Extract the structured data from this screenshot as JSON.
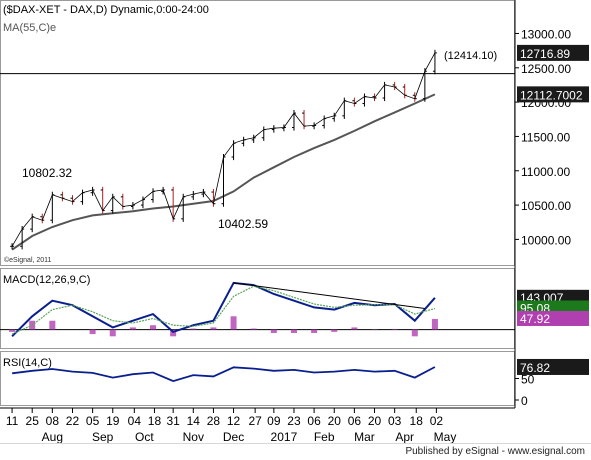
{
  "colors": {
    "price_bar": "#000000",
    "ma": "#555555",
    "macd_line": "#0a1f8f",
    "macd_signal": "#5aa55a",
    "macd_hist": "#b040b0",
    "rsi_line": "#0a1f8f",
    "value_box_bg": "#1a1a1a",
    "value_box_text": "#ffffff"
  },
  "footer": {
    "publisher": "Published by eSignal - www.esignal.com"
  },
  "chart_data": [
    {
      "type": "line",
      "panel": "price",
      "title": "($DAX-XET - DAX,D) Dynamic,0:00-24:00",
      "subtitle": "MA(55,C)e",
      "watermark": "©eSignal, 2011",
      "ylim": [
        9700,
        13400
      ],
      "y_ticks": [
        10000,
        10500,
        11000,
        11500,
        12000,
        12500,
        13000
      ],
      "y_tick_labels": [
        "10000.00",
        "10500.00",
        "11000.00",
        "11500.00",
        "12000.00",
        "12500.00",
        "13000.00"
      ],
      "horizontal_line": {
        "value": 12414.1,
        "label": "(12414.10)"
      },
      "annotations": [
        {
          "text": "10802.32",
          "date": "2016-09-06",
          "value": 10802.32
        },
        {
          "text": "10402.59",
          "date": "2016-12-02",
          "value": 10402.59
        }
      ],
      "last_values": [
        {
          "label": "12716.89",
          "value": 12716.89,
          "series": "price"
        },
        {
          "label": "12112.7002",
          "value": 12112.7,
          "series": "MA(55,C)e"
        }
      ],
      "series": [
        {
          "name": "$DAX-XET",
          "kind": "close",
          "points": [
            [
              "2016-07-11",
              9900
            ],
            [
              "2016-07-18",
              10150
            ],
            [
              "2016-07-25",
              10330
            ],
            [
              "2016-08-01",
              10280
            ],
            [
              "2016-08-08",
              10650
            ],
            [
              "2016-08-15",
              10600
            ],
            [
              "2016-08-22",
              10550
            ],
            [
              "2016-08-29",
              10680
            ],
            [
              "2016-09-05",
              10720
            ],
            [
              "2016-09-12",
              10420
            ],
            [
              "2016-09-19",
              10620
            ],
            [
              "2016-09-26",
              10480
            ],
            [
              "2016-10-03",
              10500
            ],
            [
              "2016-10-10",
              10580
            ],
            [
              "2016-10-17",
              10700
            ],
            [
              "2016-10-24",
              10720
            ],
            [
              "2016-10-31",
              10300
            ],
            [
              "2016-11-07",
              10620
            ],
            [
              "2016-11-14",
              10660
            ],
            [
              "2016-11-21",
              10690
            ],
            [
              "2016-11-28",
              10520
            ],
            [
              "2016-12-05",
              11200
            ],
            [
              "2016-12-12",
              11400
            ],
            [
              "2016-12-19",
              11450
            ],
            [
              "2016-12-26",
              11480
            ],
            [
              "2017-01-02",
              11600
            ],
            [
              "2017-01-09",
              11620
            ],
            [
              "2017-01-16",
              11630
            ],
            [
              "2017-01-23",
              11840
            ],
            [
              "2017-01-30",
              11650
            ],
            [
              "2017-02-06",
              11660
            ],
            [
              "2017-02-13",
              11760
            ],
            [
              "2017-02-20",
              11800
            ],
            [
              "2017-02-27",
              12020
            ],
            [
              "2017-03-06",
              11980
            ],
            [
              "2017-03-13",
              12080
            ],
            [
              "2017-03-20",
              12060
            ],
            [
              "2017-03-27",
              12250
            ],
            [
              "2017-04-03",
              12220
            ],
            [
              "2017-04-10",
              12100
            ],
            [
              "2017-04-17",
              12050
            ],
            [
              "2017-04-24",
              12450
            ],
            [
              "2017-05-01",
              12716.89
            ]
          ]
        },
        {
          "name": "MA(55,C)e",
          "kind": "line",
          "points": [
            [
              "2016-07-11",
              9850
            ],
            [
              "2016-07-25",
              10050
            ],
            [
              "2016-08-08",
              10180
            ],
            [
              "2016-08-22",
              10280
            ],
            [
              "2016-09-05",
              10350
            ],
            [
              "2016-09-19",
              10380
            ],
            [
              "2016-10-03",
              10410
            ],
            [
              "2016-10-17",
              10450
            ],
            [
              "2016-10-31",
              10480
            ],
            [
              "2016-11-14",
              10520
            ],
            [
              "2016-11-28",
              10560
            ],
            [
              "2016-12-12",
              10700
            ],
            [
              "2016-12-26",
              10900
            ],
            [
              "2017-01-09",
              11050
            ],
            [
              "2017-01-23",
              11200
            ],
            [
              "2017-02-06",
              11330
            ],
            [
              "2017-02-20",
              11450
            ],
            [
              "2017-03-06",
              11580
            ],
            [
              "2017-03-20",
              11720
            ],
            [
              "2017-04-03",
              11850
            ],
            [
              "2017-04-17",
              11980
            ],
            [
              "2017-05-01",
              12112.7
            ]
          ]
        }
      ]
    },
    {
      "type": "line",
      "panel": "macd",
      "title": "MACD(12,26,9,C)",
      "ylim": [
        -60,
        250
      ],
      "last_values": [
        {
          "label": "143.007",
          "value": 143.007,
          "series": "MACD"
        },
        {
          "label": "95.08",
          "value": 95.08,
          "series": "Signal"
        },
        {
          "label": "47.92",
          "value": 47.92,
          "series": "Histogram"
        }
      ],
      "series": [
        {
          "name": "MACD",
          "points": [
            [
              "2016-07-11",
              -30
            ],
            [
              "2016-07-25",
              60
            ],
            [
              "2016-08-08",
              130
            ],
            [
              "2016-08-22",
              110
            ],
            [
              "2016-09-05",
              60
            ],
            [
              "2016-09-19",
              10
            ],
            [
              "2016-10-03",
              40
            ],
            [
              "2016-10-17",
              70
            ],
            [
              "2016-10-31",
              -10
            ],
            [
              "2016-11-14",
              20
            ],
            [
              "2016-11-28",
              40
            ],
            [
              "2016-12-12",
              210
            ],
            [
              "2016-12-26",
              200
            ],
            [
              "2017-01-09",
              160
            ],
            [
              "2017-01-23",
              130
            ],
            [
              "2017-02-06",
              100
            ],
            [
              "2017-02-20",
              90
            ],
            [
              "2017-03-06",
              120
            ],
            [
              "2017-03-20",
              110
            ],
            [
              "2017-04-03",
              115
            ],
            [
              "2017-04-17",
              40
            ],
            [
              "2017-05-01",
              143.007
            ]
          ]
        },
        {
          "name": "Signal",
          "points": [
            [
              "2016-07-11",
              -20
            ],
            [
              "2016-07-25",
              20
            ],
            [
              "2016-08-08",
              90
            ],
            [
              "2016-08-22",
              110
            ],
            [
              "2016-09-05",
              80
            ],
            [
              "2016-09-19",
              40
            ],
            [
              "2016-10-03",
              30
            ],
            [
              "2016-10-17",
              50
            ],
            [
              "2016-10-31",
              20
            ],
            [
              "2016-11-14",
              15
            ],
            [
              "2016-11-28",
              30
            ],
            [
              "2016-12-12",
              150
            ],
            [
              "2016-12-26",
              195
            ],
            [
              "2017-01-09",
              175
            ],
            [
              "2017-01-23",
              145
            ],
            [
              "2017-02-06",
              115
            ],
            [
              "2017-02-20",
              100
            ],
            [
              "2017-03-06",
              110
            ],
            [
              "2017-03-20",
              112
            ],
            [
              "2017-04-03",
              112
            ],
            [
              "2017-04-17",
              70
            ],
            [
              "2017-05-01",
              95.08
            ]
          ]
        },
        {
          "name": "Histogram",
          "kind": "bar",
          "points": [
            [
              "2016-07-11",
              -10
            ],
            [
              "2016-07-25",
              40
            ],
            [
              "2016-08-08",
              40
            ],
            [
              "2016-08-22",
              0
            ],
            [
              "2016-09-05",
              -20
            ],
            [
              "2016-09-19",
              -30
            ],
            [
              "2016-10-03",
              10
            ],
            [
              "2016-10-17",
              20
            ],
            [
              "2016-10-31",
              -30
            ],
            [
              "2016-11-14",
              5
            ],
            [
              "2016-11-28",
              10
            ],
            [
              "2016-12-12",
              60
            ],
            [
              "2016-12-26",
              5
            ],
            [
              "2017-01-09",
              -15
            ],
            [
              "2017-01-23",
              -15
            ],
            [
              "2017-02-06",
              -15
            ],
            [
              "2017-02-20",
              -10
            ],
            [
              "2017-03-06",
              10
            ],
            [
              "2017-03-20",
              -2
            ],
            [
              "2017-04-03",
              3
            ],
            [
              "2017-04-17",
              -30
            ],
            [
              "2017-05-01",
              47.92
            ]
          ]
        }
      ],
      "trendline": [
        [
          "2016-12-12",
          210
        ],
        [
          "2017-04-24",
          95
        ]
      ]
    },
    {
      "type": "line",
      "panel": "rsi",
      "title": "RSI(14,C)",
      "ylim": [
        0,
        100
      ],
      "y_ticks": [
        0,
        50
      ],
      "y_tick_labels": [
        "0",
        "50"
      ],
      "last_values": [
        {
          "label": "76.82",
          "value": 76.82,
          "series": "RSI"
        }
      ],
      "series": [
        {
          "name": "RSI",
          "points": [
            [
              "2016-07-11",
              62
            ],
            [
              "2016-07-25",
              68
            ],
            [
              "2016-08-08",
              72
            ],
            [
              "2016-08-22",
              66
            ],
            [
              "2016-09-05",
              63
            ],
            [
              "2016-09-19",
              52
            ],
            [
              "2016-10-03",
              60
            ],
            [
              "2016-10-17",
              64
            ],
            [
              "2016-10-31",
              44
            ],
            [
              "2016-11-14",
              58
            ],
            [
              "2016-11-28",
              55
            ],
            [
              "2016-12-12",
              76
            ],
            [
              "2016-12-26",
              73
            ],
            [
              "2017-01-09",
              68
            ],
            [
              "2017-01-23",
              70
            ],
            [
              "2017-02-06",
              64
            ],
            [
              "2017-02-20",
              66
            ],
            [
              "2017-03-06",
              70
            ],
            [
              "2017-03-20",
              66
            ],
            [
              "2017-04-03",
              68
            ],
            [
              "2017-04-17",
              52
            ],
            [
              "2017-05-01",
              76.82
            ]
          ]
        }
      ]
    }
  ],
  "x_axis": {
    "day_labels": [
      [
        "2016-07-11",
        "11"
      ],
      [
        "2016-07-25",
        "25"
      ],
      [
        "2016-08-08",
        "08"
      ],
      [
        "2016-08-22",
        "22"
      ],
      [
        "2016-09-05",
        "05"
      ],
      [
        "2016-09-19",
        "19"
      ],
      [
        "2016-10-04",
        "04"
      ],
      [
        "2016-10-18",
        "18"
      ],
      [
        "2016-10-31",
        "31"
      ],
      [
        "2016-11-14",
        "14"
      ],
      [
        "2016-11-28",
        "28"
      ],
      [
        "2016-12-12",
        "12"
      ],
      [
        "2016-12-27",
        "27"
      ],
      [
        "2017-01-09",
        "09"
      ],
      [
        "2017-01-23",
        "23"
      ],
      [
        "2017-02-06",
        "06"
      ],
      [
        "2017-02-20",
        "20"
      ],
      [
        "2017-03-06",
        "06"
      ],
      [
        "2017-03-20",
        "20"
      ],
      [
        "2017-04-03",
        "03"
      ],
      [
        "2017-04-18",
        "18"
      ],
      [
        "2017-05-02",
        "02"
      ]
    ],
    "month_labels": [
      [
        "2016-08-08",
        "Aug"
      ],
      [
        "2016-09-12",
        "Sep"
      ],
      [
        "2016-10-11",
        "Oct"
      ],
      [
        "2016-11-14",
        "Nov"
      ],
      [
        "2016-12-12",
        "Dec"
      ],
      [
        "2017-01-16",
        "2017"
      ],
      [
        "2017-02-13",
        "Feb"
      ],
      [
        "2017-03-13",
        "Mar"
      ],
      [
        "2017-04-10",
        "Apr"
      ],
      [
        "2017-05-08",
        "May"
      ]
    ]
  }
}
